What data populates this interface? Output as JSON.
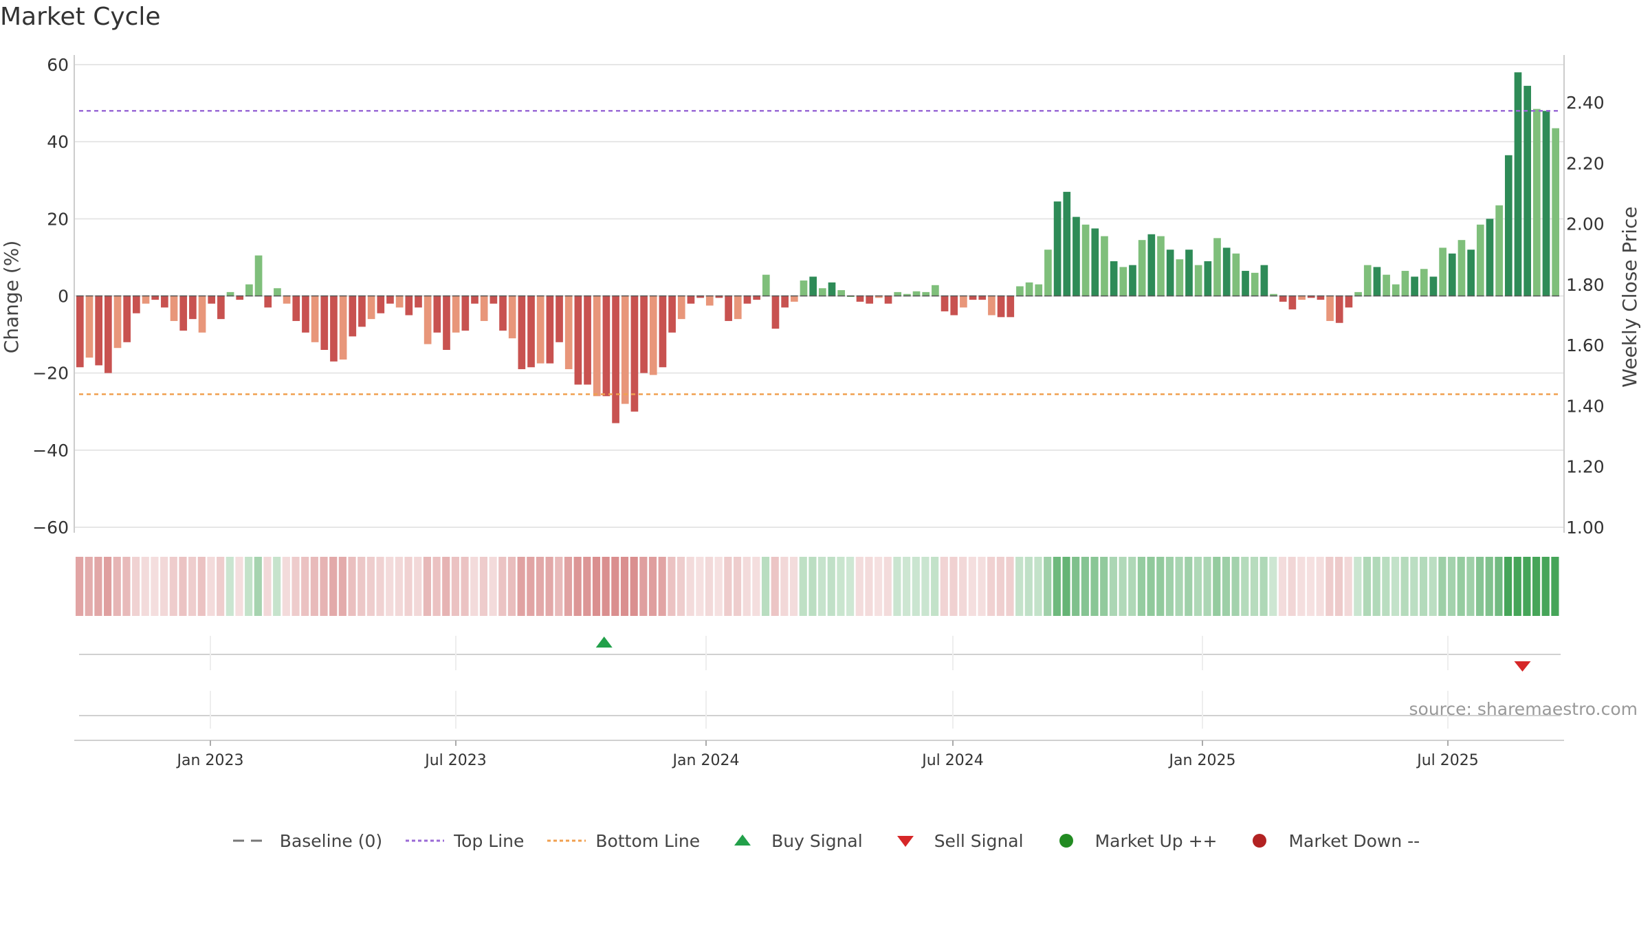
{
  "title": "Market Cycle",
  "source": "source: sharemaestro.com",
  "colors": {
    "neg_strong": "#c85250",
    "neg_light": "#e8967a",
    "pos_strong": "#2e8b57",
    "pos_light": "#7fbf7b",
    "top_line": "#9a6ad6",
    "bottom_line": "#f0a050",
    "buy": "#22a04a",
    "sell": "#d62728",
    "market_up": "#228b22",
    "market_down": "#b22222"
  },
  "legend": [
    {
      "label": "Baseline (0)",
      "icon": "dash-line"
    },
    {
      "label": "Top Line",
      "icon": "dotted-purple-line"
    },
    {
      "label": "Bottom Line",
      "icon": "dotted-orange-line"
    },
    {
      "label": "Buy Signal",
      "icon": "up-triangle"
    },
    {
      "label": "Sell Signal",
      "icon": "down-triangle"
    },
    {
      "label": "Market Up ++",
      "icon": "green-dot"
    },
    {
      "label": "Market Down --",
      "icon": "red-dot"
    }
  ],
  "chart_data": {
    "type": "bar",
    "title": "Market Cycle",
    "ylabel": "Change (%)",
    "y2label": "Weekly Close Price",
    "ylim": [
      -60,
      60
    ],
    "y2lim": [
      1.0,
      2.4
    ],
    "yticks": [
      "60",
      "40",
      "20",
      "0",
      "−20",
      "−40",
      "−60"
    ],
    "y2ticks": [
      "2.40",
      "2.20",
      "2.00",
      "1.80",
      "1.60",
      "1.40",
      "1.20",
      "1.00"
    ],
    "xticks": [
      "Jan 2023",
      "Jul 2023",
      "Jan 2024",
      "Jul 2024",
      "Jan 2025",
      "Jul 2025"
    ],
    "top_line": 48,
    "bottom_line": -25.5,
    "values": [
      -18.5,
      -16,
      -18,
      -20,
      -13.5,
      -12,
      -4.5,
      -2,
      -1,
      -3,
      -6.5,
      -9,
      -6,
      -9.5,
      -2,
      -6,
      1,
      -1,
      3,
      10.5,
      -3,
      2,
      -2,
      -6.5,
      -9.5,
      -12,
      -14,
      -17,
      -16.5,
      -10.5,
      -8,
      -6,
      -4.5,
      -2,
      -3,
      -5,
      -3,
      -12.5,
      -9.5,
      -14,
      -9.5,
      -9,
      -2,
      -6.5,
      -2,
      -9,
      -11,
      -19,
      -18.5,
      -17.5,
      -17.5,
      -12,
      -19,
      -23,
      -23,
      -26,
      -26,
      -33,
      -28,
      -30,
      -20,
      -20.5,
      -18.5,
      -9.5,
      -6,
      -2,
      -0.5,
      -2.5,
      -0.5,
      -6.5,
      -6,
      -2,
      -1,
      5.5,
      -8.5,
      -3,
      -1.5,
      4,
      5,
      2,
      3.5,
      1.5,
      0,
      -1.5,
      -2,
      -0.5,
      -2,
      1,
      0.5,
      1.2,
      1,
      2.8,
      -4,
      -5,
      -3,
      -1,
      -1,
      -5,
      -5.5,
      -5.5,
      2.5,
      3.5,
      3,
      12,
      24.5,
      27,
      20.5,
      18.5,
      17.5,
      15.5,
      9,
      7.5,
      8,
      14.5,
      16,
      15.5,
      12,
      9.5,
      12,
      8,
      9,
      15,
      12.5,
      11,
      6.5,
      6,
      8,
      0.5,
      -1.5,
      -3.5,
      -1,
      -0.5,
      -1,
      -6.5,
      -7,
      -3,
      1,
      8,
      7.5,
      5.5,
      3,
      6.5,
      5,
      7,
      5,
      12.5,
      11,
      14.5,
      12,
      18.5,
      20,
      23.5,
      36.5,
      58,
      54.5,
      48.5,
      48,
      43.5
    ],
    "strip_values": [
      -18.5,
      -16,
      -18,
      -20,
      -13.5,
      -12,
      -4.5,
      -2,
      -1,
      -3,
      -6.5,
      -9,
      -6,
      -9.5,
      -2,
      -6,
      1,
      -1,
      3,
      10.5,
      -3,
      2,
      -2,
      -6.5,
      -9.5,
      -12,
      -14,
      -17,
      -16.5,
      -10.5,
      -8,
      -6,
      -4.5,
      -2,
      -3,
      -5,
      -3,
      -12.5,
      -9.5,
      -14,
      -9.5,
      -9,
      -2,
      -6.5,
      -2,
      -9,
      -11,
      -19,
      -18.5,
      -17.5,
      -17.5,
      -12,
      -19,
      -23,
      -23,
      -26,
      -26,
      -33,
      -28,
      -30,
      -20,
      -20.5,
      -18.5,
      -9.5,
      -6,
      -2,
      -0.5,
      -2.5,
      -0.5,
      -6.5,
      -6,
      -2,
      -1,
      5.5,
      -8.5,
      -3,
      -1.5,
      4,
      5,
      2,
      3.5,
      1.5,
      0,
      -1.5,
      -2,
      -0.5,
      -2,
      1,
      0.5,
      1.2,
      1,
      2.8,
      -4,
      -5,
      -3,
      -1,
      -1,
      -5,
      -5.5,
      -5.5,
      2.5,
      3.5,
      3,
      12,
      24.5,
      27,
      20.5,
      18.5,
      17.5,
      15.5,
      9,
      7.5,
      8,
      14.5,
      16,
      15.5,
      12,
      9.5,
      12,
      8,
      9,
      15,
      12.5,
      11,
      6.5,
      6,
      8,
      0.5,
      -1.5,
      -3.5,
      -1,
      -0.5,
      -1,
      -6.5,
      -7,
      -3,
      1,
      8,
      7.5,
      5.5,
      3,
      6.5,
      5,
      7,
      5,
      12.5,
      11,
      14.5,
      12,
      18.5,
      20,
      23.5,
      36.5,
      58,
      54.5,
      48.5,
      48,
      43.5
    ],
    "buy_signals": [
      {
        "index": 55
      }
    ],
    "sell_signals": [
      {
        "index": 153
      }
    ]
  }
}
